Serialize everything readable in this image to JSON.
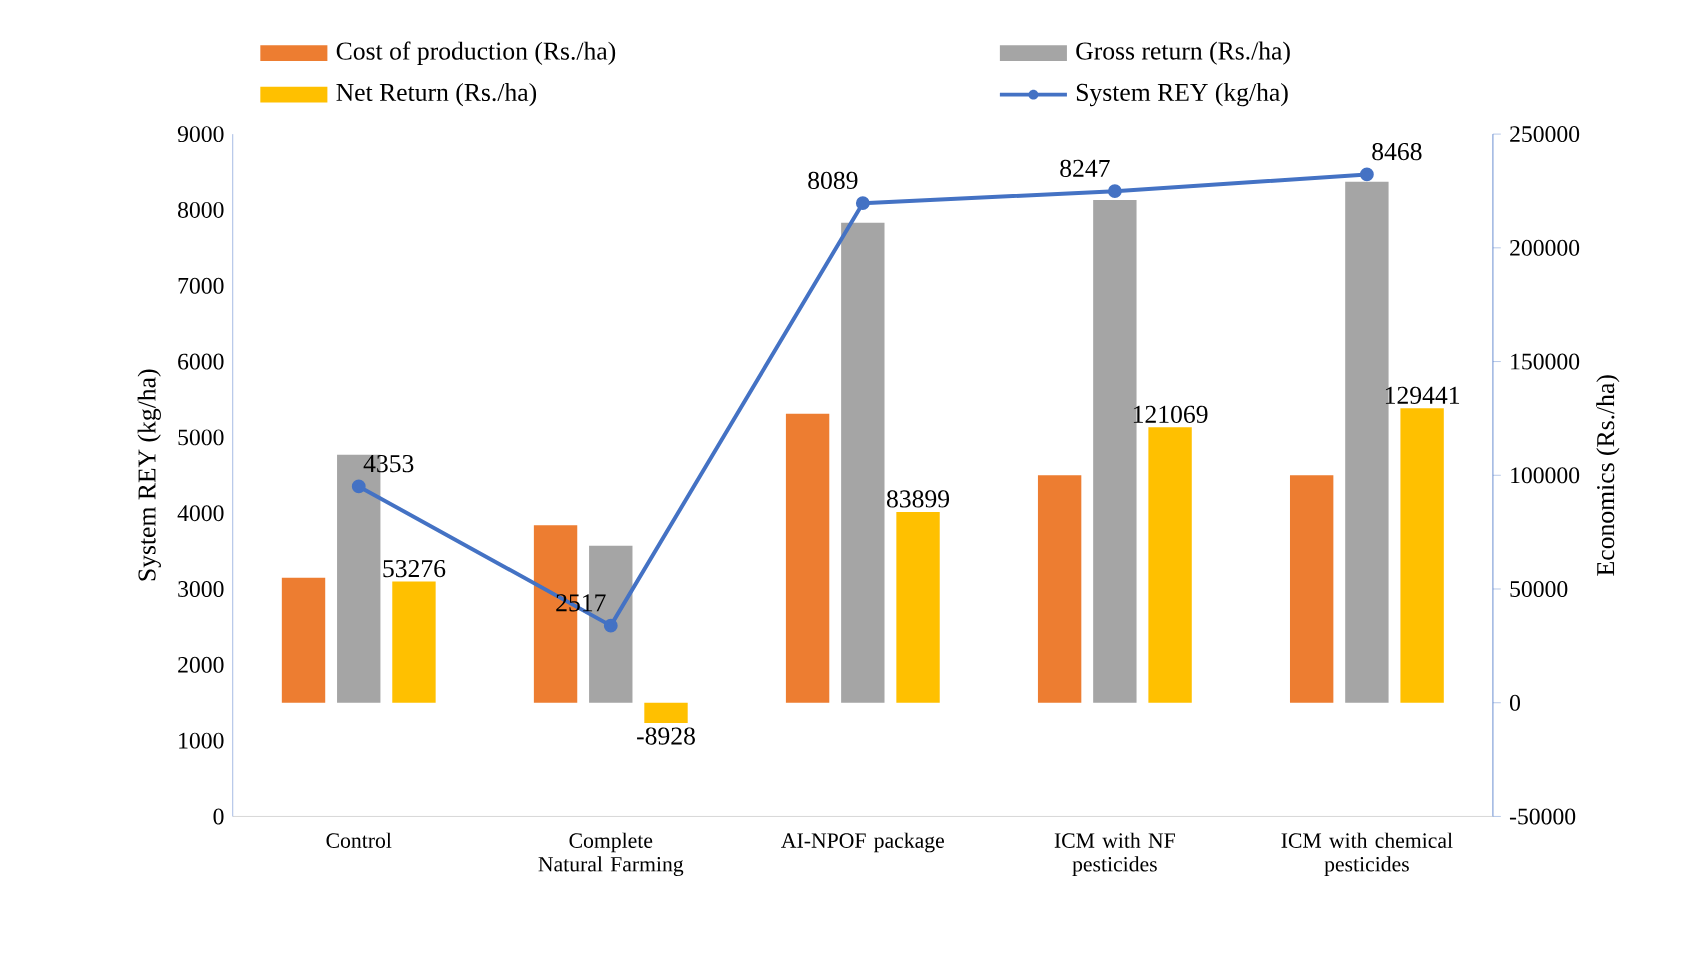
{
  "chart_data": {
    "type": "bar",
    "categories": [
      "Control",
      "Complete Natural Farming",
      "AI-NPOF package",
      "ICM with NF pesticides",
      "ICM  with chemical pesticides"
    ],
    "ylabel": "System REY (kg/ha)",
    "y2label": "Economics (Rs./ha)",
    "ylim": [
      0,
      9000
    ],
    "yticks": [
      0,
      1000,
      2000,
      3000,
      4000,
      5000,
      6000,
      7000,
      8000,
      9000
    ],
    "y2lim": [
      -50000,
      250000
    ],
    "y2ticks": [
      -50000,
      0,
      50000,
      100000,
      150000,
      200000,
      250000
    ],
    "series": [
      {
        "name": "Cost of production (Rs./ha)",
        "color": "#ed7d31",
        "axis": "y2",
        "values": [
          55000,
          78000,
          127000,
          100000,
          100000
        ]
      },
      {
        "name": "Gross return (Rs./ha)",
        "color": "#a5a5a5",
        "axis": "y2",
        "values": [
          109000,
          69000,
          211000,
          221000,
          229000
        ]
      },
      {
        "name": "Net Return (Rs./ha)",
        "color": "#ffc000",
        "axis": "y2",
        "values": [
          53276,
          -8928,
          83899,
          121069,
          129441
        ],
        "value_labels": [
          "53276",
          "-8928",
          "83899",
          "121069",
          "129441"
        ]
      },
      {
        "name": "System REY (kg/ha)",
        "type": "line",
        "color": "#4472c4",
        "values": [
          4353,
          2517,
          8089,
          8247,
          8468
        ],
        "value_labels": [
          "4353",
          "2517",
          "8089",
          "8247",
          "8468"
        ]
      }
    ],
    "marker": "circle",
    "legend": "top",
    "grid": false
  }
}
